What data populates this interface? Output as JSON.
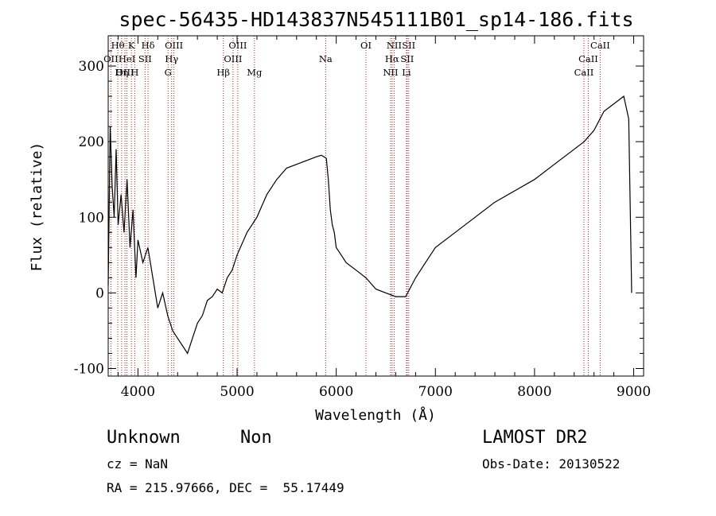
{
  "chart_data": {
    "type": "line",
    "title": "spec-56435-HD143837N545111B01_sp14-186.fits",
    "xlabel": "Wavelength (Å)",
    "ylabel": "Flux (relative)",
    "xlim": [
      3700,
      9100
    ],
    "ylim": [
      -110,
      340
    ],
    "x_ticks": [
      4000,
      5000,
      6000,
      7000,
      8000,
      9000
    ],
    "y_ticks": [
      -100,
      0,
      100,
      200,
      300
    ],
    "grid": false,
    "series": [
      {
        "x": [
          3700,
          3720,
          3740,
          3760,
          3780,
          3800,
          3830,
          3860,
          3890,
          3920,
          3950,
          3980,
          4000,
          4050,
          4100,
          4150,
          4200,
          4250,
          4300,
          4350,
          4400,
          4450,
          4500,
          4550,
          4600,
          4650,
          4700,
          4750,
          4800,
          4850,
          4900,
          4950,
          5000,
          5100,
          5200,
          5300,
          5400,
          5500,
          5600,
          5700,
          5800,
          5850,
          5900,
          5920,
          5940,
          5960,
          5980,
          6000,
          6050,
          6100,
          6200,
          6300,
          6400,
          6500,
          6600,
          6700,
          6800,
          6900,
          7000,
          7200,
          7400,
          7600,
          7800,
          8000,
          8200,
          8400,
          8500,
          8600,
          8700,
          8800,
          8900,
          8950,
          8980
        ],
        "values": [
          10,
          220,
          140,
          100,
          190,
          90,
          130,
          80,
          150,
          60,
          110,
          20,
          70,
          40,
          60,
          20,
          -20,
          0,
          -30,
          -50,
          -60,
          -70,
          -80,
          -60,
          -40,
          -30,
          -10,
          -5,
          5,
          0,
          20,
          30,
          50,
          80,
          100,
          130,
          150,
          165,
          170,
          175,
          180,
          182,
          178,
          150,
          110,
          90,
          80,
          60,
          50,
          40,
          30,
          20,
          5,
          0,
          -5,
          -5,
          20,
          40,
          60,
          80,
          100,
          120,
          135,
          150,
          170,
          190,
          200,
          215,
          240,
          250,
          260,
          230,
          0
        ]
      }
    ],
    "line_markers": [
      {
        "label": "Hθ",
        "wavelength": 3797,
        "row": 1
      },
      {
        "label": "K",
        "wavelength": 3934,
        "row": 1
      },
      {
        "label": "Hδ",
        "wavelength": 4102,
        "row": 1
      },
      {
        "label": "OIII",
        "wavelength": 4363,
        "row": 1
      },
      {
        "label": "OIII",
        "wavelength": 5007,
        "row": 1
      },
      {
        "label": "OI",
        "wavelength": 6300,
        "row": 1
      },
      {
        "label": "NII",
        "wavelength": 6584,
        "row": 1
      },
      {
        "label": "SII",
        "wavelength": 6731,
        "row": 1
      },
      {
        "label": "CaII",
        "wavelength": 8662,
        "row": 1
      },
      {
        "label": "OII",
        "wavelength": 3727,
        "row": 2
      },
      {
        "label": "HeI",
        "wavelength": 3889,
        "row": 2
      },
      {
        "label": "SII",
        "wavelength": 4072,
        "row": 2
      },
      {
        "label": "Hγ",
        "wavelength": 4340,
        "row": 2
      },
      {
        "label": "OIII",
        "wavelength": 4959,
        "row": 2
      },
      {
        "label": "Hα",
        "wavelength": 6563,
        "row": 2
      },
      {
        "label": "SII",
        "wavelength": 6716,
        "row": 2
      },
      {
        "label": "CaII",
        "wavelength": 8542,
        "row": 2
      },
      {
        "label": "OIII",
        "wavelength": 3869,
        "row": 3
      },
      {
        "label": "Hη",
        "wavelength": 3835,
        "row": 3
      },
      {
        "label": "H",
        "wavelength": 3968,
        "row": 3
      },
      {
        "label": "G",
        "wavelength": 4304,
        "row": 3
      },
      {
        "label": "Hβ",
        "wavelength": 4861,
        "row": 3
      },
      {
        "label": "Mg",
        "wavelength": 5175,
        "row": 3
      },
      {
        "label": "Na",
        "wavelength": 5893,
        "row": 2
      },
      {
        "label": "NII",
        "wavelength": 6548,
        "row": 3
      },
      {
        "label": "Li",
        "wavelength": 6708,
        "row": 3
      },
      {
        "label": "CaII",
        "wavelength": 8498,
        "row": 3
      }
    ]
  },
  "info": {
    "class": "Unknown",
    "subclass": "Non",
    "survey": "LAMOST DR2",
    "cz": "cz = NaN",
    "obs_date": "Obs-Date: 20130522",
    "coords": "RA = 215.97666, DEC =  55.17449"
  }
}
